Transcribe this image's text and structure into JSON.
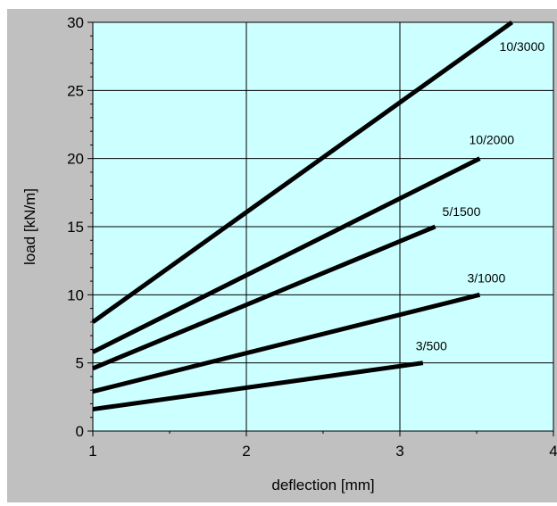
{
  "chart_data": {
    "type": "line",
    "xlabel": "deflection [mm]",
    "ylabel": "load  [kN/m]",
    "xlim": [
      1,
      4
    ],
    "ylim": [
      0,
      30
    ],
    "x_ticks": [
      1,
      2,
      3,
      4
    ],
    "y_ticks": [
      0,
      5,
      10,
      15,
      20,
      25,
      30
    ],
    "grid": true,
    "series": [
      {
        "name": "3/500",
        "x": [
          1,
          3.15
        ],
        "y": [
          1.6,
          5.0
        ]
      },
      {
        "name": "3/1000",
        "x": [
          1,
          3.52
        ],
        "y": [
          2.9,
          10.0
        ]
      },
      {
        "name": "5/1500",
        "x": [
          1,
          3.23
        ],
        "y": [
          4.6,
          15.0
        ]
      },
      {
        "name": "10/2000",
        "x": [
          1,
          3.52
        ],
        "y": [
          5.8,
          20.0
        ]
      },
      {
        "name": "10/3000",
        "x": [
          1,
          3.73
        ],
        "y": [
          8.0,
          30.0
        ]
      }
    ]
  },
  "colors": {
    "frame_background": "#c0c0c0",
    "plot_background": "#ccffff",
    "line": "#000000",
    "grid": "#000000"
  }
}
